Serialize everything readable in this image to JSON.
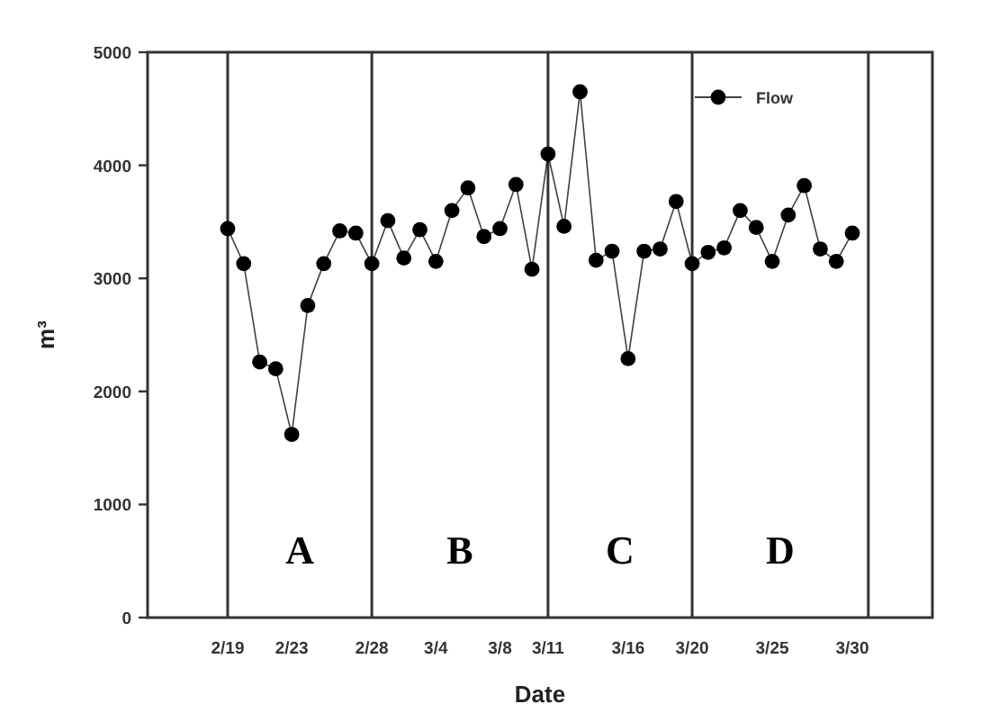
{
  "chart_data": {
    "type": "line",
    "xlabel": "Date",
    "ylabel": "m³",
    "x": [
      "--02-19",
      "--02-20",
      "--02-21",
      "--02-22",
      "--02-23",
      "--02-24",
      "--02-25",
      "--02-26",
      "--02-27",
      "--02-28",
      "--03-01",
      "--03-02",
      "--03-03",
      "--03-04",
      "--03-05",
      "--03-06",
      "--03-07",
      "--03-08",
      "--03-09",
      "--03-10",
      "--03-11",
      "--03-12",
      "--03-13",
      "--03-14",
      "--03-15",
      "--03-16",
      "--03-17",
      "--03-18",
      "--03-19",
      "--03-20",
      "--03-21",
      "--03-22",
      "--03-23",
      "--03-24",
      "--03-25",
      "--03-26",
      "--03-27",
      "--03-28",
      "--03-29",
      "--03-30"
    ],
    "series": [
      {
        "name": "Flow",
        "color": "#000000",
        "values": [
          3440,
          3130,
          2260,
          2200,
          1620,
          2760,
          3130,
          3420,
          3400,
          3130,
          3510,
          3180,
          3430,
          3150,
          3600,
          3800,
          3370,
          3440,
          3830,
          3080,
          4100,
          3460,
          4650,
          3160,
          3240,
          2290,
          3240,
          3260,
          3680,
          3130,
          3230,
          3270,
          3600,
          3450,
          3150,
          3560,
          3820,
          3260,
          3150,
          3400
        ]
      }
    ],
    "xlim": [
      "--02-14",
      "--04-04"
    ],
    "xticks": [
      {
        "value": "--02-19",
        "label": "2/19"
      },
      {
        "value": "--02-23",
        "label": "2/23"
      },
      {
        "value": "--02-28",
        "label": "2/28"
      },
      {
        "value": "--03-04",
        "label": "3/4"
      },
      {
        "value": "--03-08",
        "label": "3/8"
      },
      {
        "value": "--03-11",
        "label": "3/11"
      },
      {
        "value": "--03-16",
        "label": "3/16"
      },
      {
        "value": "--03-20",
        "label": "3/20"
      },
      {
        "value": "--03-25",
        "label": "3/25"
      },
      {
        "value": "--03-30",
        "label": "3/30"
      }
    ],
    "ylim": [
      0,
      5000
    ],
    "yticks": [
      0,
      1000,
      2000,
      3000,
      4000,
      5000
    ],
    "ref_lines": [
      {
        "axis": "x",
        "value": "--02-19"
      },
      {
        "axis": "x",
        "value": "--02-28"
      },
      {
        "axis": "x",
        "value": "--03-11"
      },
      {
        "axis": "x",
        "value": "--03-20"
      },
      {
        "axis": "x",
        "value": "--03-31"
      }
    ],
    "annotations": [
      "A",
      "B",
      "C",
      "D"
    ],
    "legend": "top right",
    "marker": "circle",
    "line_style": "solid"
  }
}
